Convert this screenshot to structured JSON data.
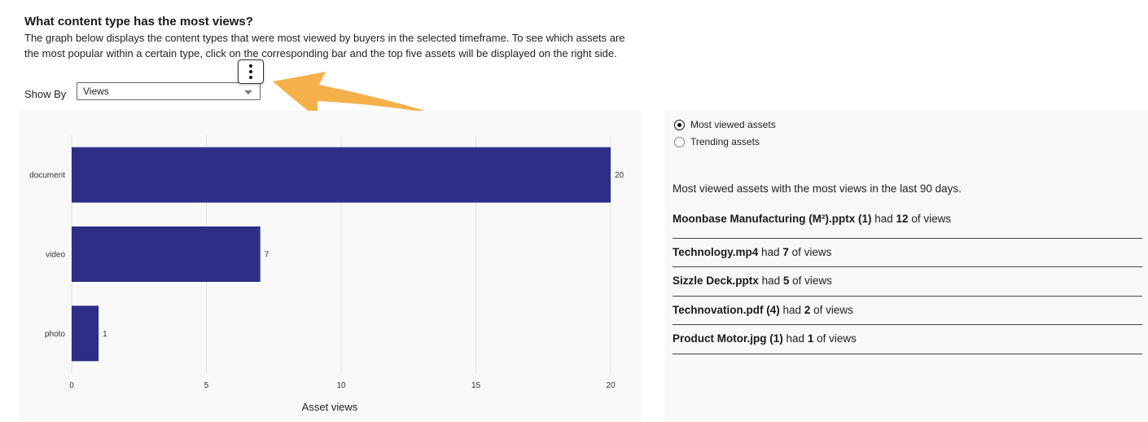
{
  "header": {
    "title": "What content type has the most views?",
    "description": "The graph below displays the content types that were most viewed by buyers in the selected timeframe. To see which assets are the most popular within a certain type, click on the corresponding bar and the top five assets will be displayed on the right side."
  },
  "controls": {
    "show_by_label": "Show By",
    "show_by_value": "Views"
  },
  "annotation": {
    "arrow_color": "#F5B04A"
  },
  "chart_data": {
    "type": "bar",
    "orientation": "horizontal",
    "categories": [
      "document",
      "video",
      "photo"
    ],
    "values": [
      20,
      7,
      1
    ],
    "data_labels": [
      "20",
      "7",
      "1"
    ],
    "xlabel": "Asset views",
    "ylabel": "",
    "xlim": [
      0,
      20
    ],
    "x_ticks": [
      "0",
      "5",
      "10",
      "15",
      "20"
    ],
    "grid": true,
    "bar_color": "#2E2E86"
  },
  "right_panel": {
    "radio_options": [
      {
        "label": "Most viewed assets",
        "selected": true
      },
      {
        "label": "Trending assets",
        "selected": false
      }
    ],
    "summary": "Most viewed assets with the most views in the last 90 days.",
    "assets": [
      {
        "name": "Moonbase Manufacturing (M²).pptx (1)",
        "had": "had",
        "count": "12",
        "suffix": "of views"
      },
      {
        "name": "Technology.mp4",
        "had": "had",
        "count": "7",
        "suffix": "of views"
      },
      {
        "name": "Sizzle Deck.pptx",
        "had": "had",
        "count": "5",
        "suffix": "of views"
      },
      {
        "name": "Technovation.pdf (4)",
        "had": "had",
        "count": "2",
        "suffix": "of views"
      },
      {
        "name": "Product Motor.jpg (1)",
        "had": "had",
        "count": "1",
        "suffix": "of views"
      }
    ]
  }
}
